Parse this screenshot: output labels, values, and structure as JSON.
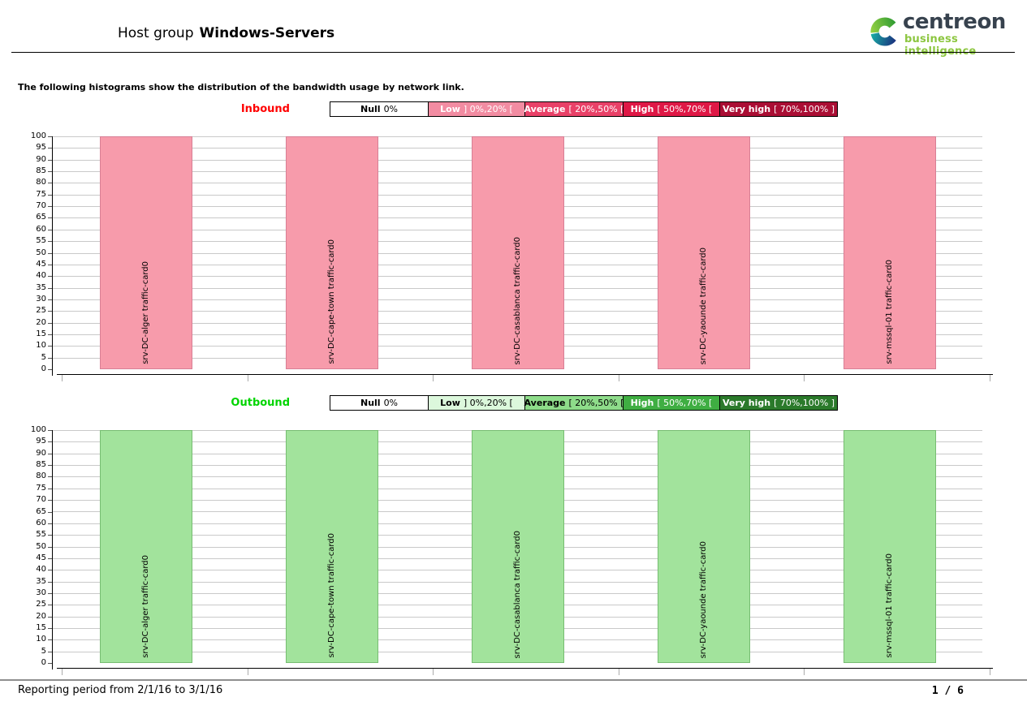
{
  "page": {
    "title_prefix": "Host group",
    "title_bold": "Windows-Servers"
  },
  "logo": {
    "brand": "centreon",
    "tagline": "business intelligence",
    "brand_color": "#37424e",
    "tagline_color": "#8cc63f"
  },
  "intro": "The following histograms show the distribution of the bandwidth usage by network link.",
  "footer": {
    "reporting_period": "Reporting period from 2/1/16 to 3/1/16",
    "page_number": "1 / 6"
  },
  "chart_data": [
    {
      "id": "inbound",
      "type": "bar",
      "title": "Inbound",
      "title_color": "#ff0000",
      "categories": [
        "srv-DC-alger traffic-card0",
        "srv-DC-cape-town traffic-card0",
        "srv-DC-casablanca traffic-card0",
        "srv-DC-yaounde traffic-card0",
        "srv-mssql-01 traffic-card0"
      ],
      "values": [
        100,
        100,
        100,
        100,
        100
      ],
      "xlabel": "",
      "ylabel": "",
      "ylim": [
        0,
        100
      ],
      "ytick_step": 5,
      "grid": true,
      "legend_position": "top",
      "bar_fill": "#f79bab",
      "bar_border": "#d87f95",
      "legend": [
        {
          "name": "Null",
          "range": "0%",
          "bg": "#ffffff",
          "fg": "#000000"
        },
        {
          "name": "Low",
          "range": "] 0%,20% [",
          "bg": "#f28ca2",
          "fg": "#ffffff"
        },
        {
          "name": "Average",
          "range": "[ 20%,50% [",
          "bg": "#e94168",
          "fg": "#ffffff"
        },
        {
          "name": "High",
          "range": "[ 50%,70% [",
          "bg": "#df1846",
          "fg": "#ffffff"
        },
        {
          "name": "Very high",
          "range": "[ 70%,100% ]",
          "bg": "#aa0e34",
          "fg": "#ffffff"
        }
      ]
    },
    {
      "id": "outbound",
      "type": "bar",
      "title": "Outbound",
      "title_color": "#00d400",
      "categories": [
        "srv-DC-alger traffic-card0",
        "srv-DC-cape-town traffic-card0",
        "srv-DC-casablanca traffic-card0",
        "srv-DC-yaounde traffic-card0",
        "srv-mssql-01 traffic-card0"
      ],
      "values": [
        100,
        100,
        100,
        100,
        100
      ],
      "xlabel": "",
      "ylabel": "",
      "ylim": [
        0,
        100
      ],
      "ytick_step": 5,
      "grid": true,
      "legend_position": "top",
      "bar_fill": "#a2e39c",
      "bar_border": "#77bd72",
      "legend": [
        {
          "name": "Null",
          "range": "0%",
          "bg": "#ffffff",
          "fg": "#000000"
        },
        {
          "name": "Low",
          "range": "] 0%,20% [",
          "bg": "#dcf8dc",
          "fg": "#000000"
        },
        {
          "name": "Average",
          "range": "[ 20%,50% [",
          "bg": "#8edc8a",
          "fg": "#000000"
        },
        {
          "name": "High",
          "range": "[ 50%,70% [",
          "bg": "#3fae42",
          "fg": "#ffffff"
        },
        {
          "name": "Very high",
          "range": "[ 70%,100% ]",
          "bg": "#2b7a2b",
          "fg": "#ffffff"
        }
      ]
    }
  ]
}
